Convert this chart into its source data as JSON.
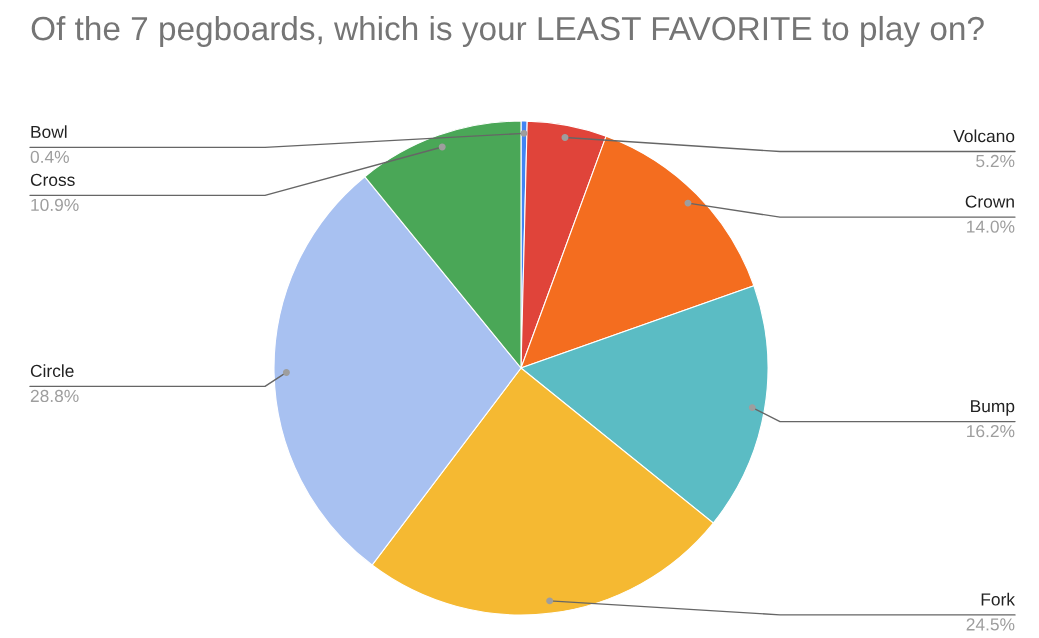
{
  "chart_data": {
    "type": "pie",
    "title": "Of the 7 pegboards, which is your LEAST FAVORITE to play on?",
    "categories": [
      "Bowl",
      "Volcano",
      "Crown",
      "Bump",
      "Fork",
      "Circle",
      "Cross"
    ],
    "values": [
      0.4,
      5.2,
      14.0,
      16.2,
      24.5,
      28.8,
      10.9
    ],
    "colors": [
      "#4285f4",
      "#e0443a",
      "#f46d1f",
      "#5bbcc4",
      "#f5b932",
      "#a8c1f1",
      "#4aa757"
    ],
    "value_labels": [
      "0.4%",
      "5.2%",
      "14.0%",
      "16.2%",
      "24.5%",
      "28.8%",
      "10.9%"
    ]
  }
}
